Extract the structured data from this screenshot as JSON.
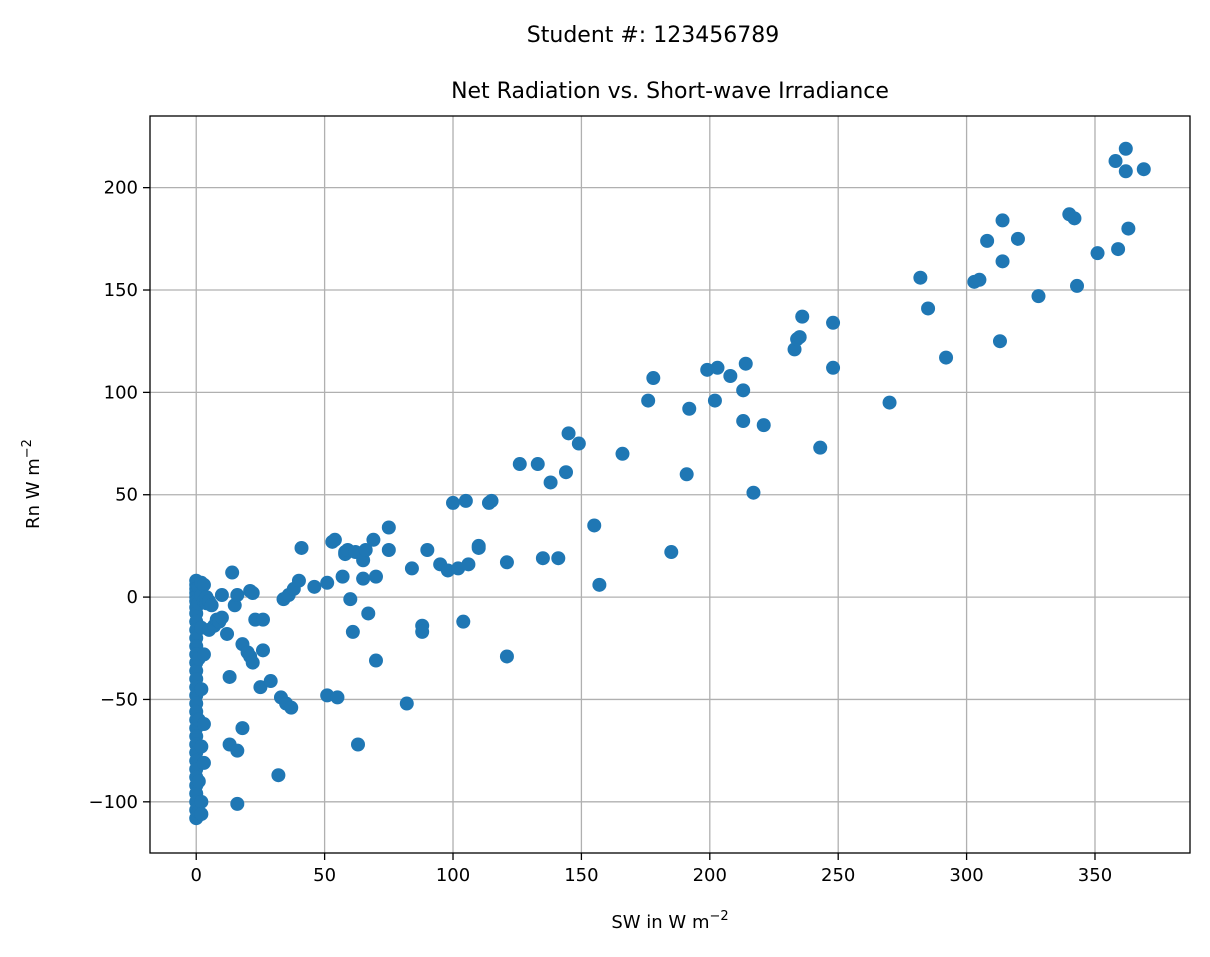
{
  "suptitle": "Student #: 123456789",
  "chart_data": {
    "type": "scatter",
    "title": "Net Radiation vs. Short-wave Irradiance",
    "xlabel": {
      "base": "SW in W m",
      "sup": "−2"
    },
    "ylabel": {
      "base": "Rn W m",
      "sup": "−2"
    },
    "xlim": [
      -18,
      387
    ],
    "ylim": [
      -125,
      235
    ],
    "xticks": [
      0,
      50,
      100,
      150,
      200,
      250,
      300,
      350
    ],
    "yticks": [
      -100,
      -50,
      0,
      50,
      100,
      150,
      200
    ],
    "xtick_labels": [
      "0",
      "50",
      "100",
      "150",
      "200",
      "250",
      "300",
      "350"
    ],
    "ytick_labels": [
      "−100",
      "−50",
      "0",
      "50",
      "100",
      "150",
      "200"
    ],
    "grid": true,
    "marker_color": "#1f77b4",
    "series": [
      {
        "points": [
          [
            0,
            8
          ],
          [
            0,
            6
          ],
          [
            0,
            4
          ],
          [
            0,
            2
          ],
          [
            0,
            0
          ],
          [
            0,
            -2
          ],
          [
            0,
            -5
          ],
          [
            0,
            -8
          ],
          [
            0,
            -12
          ],
          [
            0,
            -16
          ],
          [
            0,
            -20
          ],
          [
            0,
            -24
          ],
          [
            0,
            -28
          ],
          [
            0,
            -32
          ],
          [
            0,
            -36
          ],
          [
            0,
            -40
          ],
          [
            0,
            -44
          ],
          [
            0,
            -48
          ],
          [
            0,
            -52
          ],
          [
            0,
            -56
          ],
          [
            0,
            -60
          ],
          [
            0,
            -64
          ],
          [
            0,
            -68
          ],
          [
            0,
            -72
          ],
          [
            0,
            -76
          ],
          [
            0,
            -80
          ],
          [
            0,
            -84
          ],
          [
            0,
            -88
          ],
          [
            0,
            -92
          ],
          [
            0,
            -96
          ],
          [
            0,
            -100
          ],
          [
            0,
            -104
          ],
          [
            0,
            -108
          ],
          [
            1,
            5
          ],
          [
            1,
            -3
          ],
          [
            1,
            -30
          ],
          [
            1,
            -60
          ],
          [
            1,
            -90
          ],
          [
            1,
            -105
          ],
          [
            2,
            7
          ],
          [
            2,
            1
          ],
          [
            2,
            -15
          ],
          [
            2,
            -45
          ],
          [
            2,
            -73
          ],
          [
            2,
            -100
          ],
          [
            2,
            -106
          ],
          [
            3,
            6
          ],
          [
            3,
            -2
          ],
          [
            3,
            -28
          ],
          [
            3,
            -62
          ],
          [
            3,
            -81
          ],
          [
            4,
            -3
          ],
          [
            4,
            0
          ],
          [
            5,
            -16
          ],
          [
            5,
            -2
          ],
          [
            6,
            -4
          ],
          [
            7,
            -14
          ],
          [
            8,
            -11
          ],
          [
            9,
            -12
          ],
          [
            10,
            1
          ],
          [
            10,
            -10
          ],
          [
            12,
            -18
          ],
          [
            13,
            -39
          ],
          [
            13,
            -72
          ],
          [
            14,
            12
          ],
          [
            15,
            -4
          ],
          [
            16,
            1
          ],
          [
            16,
            -75
          ],
          [
            16,
            -101
          ],
          [
            18,
            -23
          ],
          [
            18,
            -64
          ],
          [
            20,
            -27
          ],
          [
            21,
            -29
          ],
          [
            21,
            3
          ],
          [
            22,
            -32
          ],
          [
            22,
            2
          ],
          [
            23,
            -11
          ],
          [
            25,
            -44
          ],
          [
            26,
            -11
          ],
          [
            26,
            -26
          ],
          [
            29,
            -41
          ],
          [
            32,
            -87
          ],
          [
            33,
            -49
          ],
          [
            34,
            -1
          ],
          [
            35,
            -52
          ],
          [
            36,
            1
          ],
          [
            37,
            -54
          ],
          [
            38,
            4
          ],
          [
            40,
            8
          ],
          [
            41,
            24
          ],
          [
            46,
            5
          ],
          [
            51,
            7
          ],
          [
            51,
            -48
          ],
          [
            53,
            27
          ],
          [
            54,
            28
          ],
          [
            55,
            -49
          ],
          [
            57,
            10
          ],
          [
            58,
            22
          ],
          [
            58,
            21
          ],
          [
            59,
            23
          ],
          [
            60,
            -1
          ],
          [
            61,
            -17
          ],
          [
            62,
            22
          ],
          [
            63,
            -72
          ],
          [
            65,
            9
          ],
          [
            65,
            18
          ],
          [
            66,
            23
          ],
          [
            67,
            -8
          ],
          [
            69,
            28
          ],
          [
            70,
            10
          ],
          [
            70,
            -31
          ],
          [
            75,
            34
          ],
          [
            75,
            23
          ],
          [
            82,
            -52
          ],
          [
            84,
            14
          ],
          [
            88,
            -14
          ],
          [
            88,
            -17
          ],
          [
            90,
            23
          ],
          [
            95,
            16
          ],
          [
            98,
            13
          ],
          [
            100,
            46
          ],
          [
            102,
            14
          ],
          [
            104,
            -12
          ],
          [
            105,
            47
          ],
          [
            106,
            16
          ],
          [
            110,
            24
          ],
          [
            110,
            25
          ],
          [
            114,
            46
          ],
          [
            115,
            47
          ],
          [
            121,
            17
          ],
          [
            121,
            -29
          ],
          [
            126,
            65
          ],
          [
            133,
            65
          ],
          [
            135,
            19
          ],
          [
            138,
            56
          ],
          [
            141,
            19
          ],
          [
            144,
            61
          ],
          [
            145,
            80
          ],
          [
            149,
            75
          ],
          [
            155,
            35
          ],
          [
            157,
            6
          ],
          [
            166,
            70
          ],
          [
            176,
            96
          ],
          [
            178,
            107
          ],
          [
            185,
            22
          ],
          [
            191,
            60
          ],
          [
            192,
            92
          ],
          [
            199,
            111
          ],
          [
            202,
            96
          ],
          [
            203,
            112
          ],
          [
            208,
            108
          ],
          [
            213,
            101
          ],
          [
            213,
            86
          ],
          [
            214,
            114
          ],
          [
            217,
            51
          ],
          [
            221,
            84
          ],
          [
            233,
            121
          ],
          [
            234,
            126
          ],
          [
            235,
            127
          ],
          [
            236,
            137
          ],
          [
            243,
            73
          ],
          [
            248,
            134
          ],
          [
            248,
            112
          ],
          [
            270,
            95
          ],
          [
            282,
            156
          ],
          [
            285,
            141
          ],
          [
            292,
            117
          ],
          [
            303,
            154
          ],
          [
            305,
            155
          ],
          [
            308,
            174
          ],
          [
            313,
            125
          ],
          [
            314,
            184
          ],
          [
            314,
            164
          ],
          [
            320,
            175
          ],
          [
            328,
            147
          ],
          [
            340,
            187
          ],
          [
            342,
            185
          ],
          [
            343,
            152
          ],
          [
            351,
            168
          ],
          [
            358,
            213
          ],
          [
            359,
            170
          ],
          [
            362,
            219
          ],
          [
            362,
            208
          ],
          [
            363,
            180
          ],
          [
            369,
            209
          ]
        ]
      }
    ]
  }
}
